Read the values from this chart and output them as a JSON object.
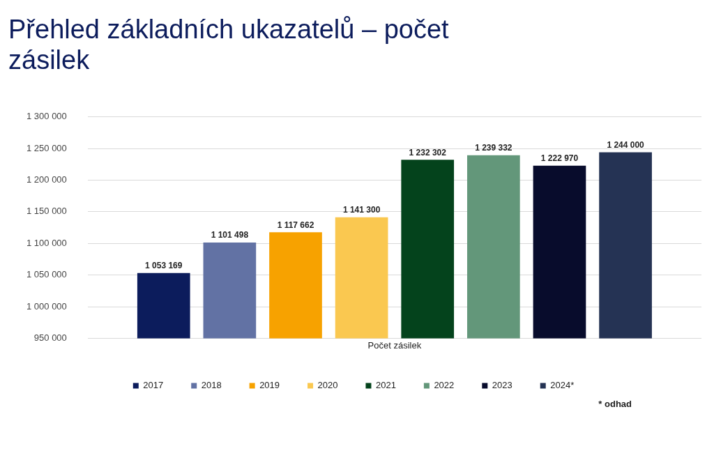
{
  "chart_data": {
    "type": "bar",
    "title": "Přehled základních ukazatelů – počet zásilek",
    "categories": [
      "Počet zásilek"
    ],
    "series": [
      {
        "name": "2017",
        "color": "#0c1c5c",
        "values": [
          1053169
        ],
        "value_labels": [
          "1 053 169"
        ]
      },
      {
        "name": "2018",
        "color": "#6272a4",
        "values": [
          1101498
        ],
        "value_labels": [
          "1 101 498"
        ]
      },
      {
        "name": "2019",
        "color": "#f7a200",
        "values": [
          1117662
        ],
        "value_labels": [
          "1 117 662"
        ]
      },
      {
        "name": "2020",
        "color": "#fac850",
        "values": [
          1141300
        ],
        "value_labels": [
          "1 141 300"
        ]
      },
      {
        "name": "2021",
        "color": "#04431c",
        "values": [
          1232302
        ],
        "value_labels": [
          "1 232 302"
        ]
      },
      {
        "name": "2022",
        "color": "#63977a",
        "values": [
          1239332
        ],
        "value_labels": [
          "1 239 332"
        ]
      },
      {
        "name": "2023",
        "color": "#080c2c",
        "values": [
          1222970
        ],
        "value_labels": [
          "1 222 970"
        ]
      },
      {
        "name": "2024*",
        "color": "#253354",
        "values": [
          1244000
        ],
        "value_labels": [
          "1 244 000"
        ]
      }
    ],
    "ylim": [
      950000,
      1300000
    ],
    "yticks": [
      {
        "value": 950000,
        "label": "950 000"
      },
      {
        "value": 1000000,
        "label": "1 000 000"
      },
      {
        "value": 1050000,
        "label": "1 050 000"
      },
      {
        "value": 1100000,
        "label": "1 100 000"
      },
      {
        "value": 1150000,
        "label": "1 150 000"
      },
      {
        "value": 1200000,
        "label": "1 200 000"
      },
      {
        "value": 1250000,
        "label": "1 250 000"
      },
      {
        "value": 1300000,
        "label": "1 300 000"
      }
    ],
    "grid": "y",
    "legend": "bottom",
    "annotations": [
      "* odhad"
    ]
  }
}
